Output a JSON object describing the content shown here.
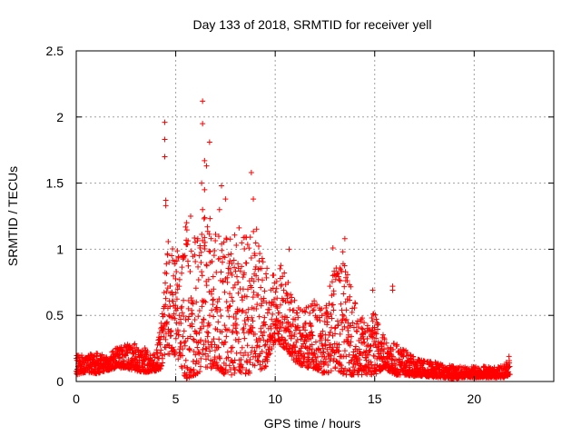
{
  "chart_data": {
    "type": "scatter",
    "title": "Day 133 of 2018, SRMTID for receiver yell",
    "xlabel": "GPS time / hours",
    "ylabel": "SRMTID / TECUs",
    "xlim": [
      0,
      24
    ],
    "ylim": [
      0,
      2.5
    ],
    "grid": true,
    "marker": "+",
    "x_ticks": [
      {
        "value": 0,
        "label": "0"
      },
      {
        "value": 5,
        "label": "5"
      },
      {
        "value": 10,
        "label": "10"
      },
      {
        "value": 15,
        "label": "15"
      },
      {
        "value": 20,
        "label": "20"
      }
    ],
    "y_ticks": [
      {
        "value": 0,
        "label": "0"
      },
      {
        "value": 0.5,
        "label": "0.5"
      },
      {
        "value": 1,
        "label": "1"
      },
      {
        "value": 1.5,
        "label": "1.5"
      },
      {
        "value": 2,
        "label": "2"
      },
      {
        "value": 2.5,
        "label": "2.5"
      }
    ],
    "series": [
      {
        "name": "SRMTID",
        "color": "#ff0000",
        "envelope": {
          "time_hours": [
            0,
            0.5,
            1,
            1.5,
            2,
            2.5,
            3,
            3.5,
            4,
            4.3,
            4.5,
            5,
            5.5,
            6,
            6.5,
            7,
            7.5,
            8,
            8.5,
            9,
            9.5,
            10,
            10.5,
            11,
            11.5,
            12,
            12.5,
            13,
            13.5,
            14,
            14.5,
            15,
            15.5,
            16,
            16.5,
            17,
            17.5,
            18,
            18.5,
            19,
            19.5,
            20,
            20.5,
            21,
            21.5,
            21.8
          ],
          "low": [
            0.05,
            0.07,
            0.06,
            0.08,
            0.1,
            0.1,
            0.08,
            0.07,
            0.08,
            0.1,
            0.2,
            0.2,
            0.02,
            0.05,
            0.1,
            0.1,
            0.05,
            0.05,
            0.05,
            0.08,
            0.1,
            0.3,
            0.25,
            0.15,
            0.1,
            0.1,
            0.05,
            0.1,
            0.05,
            0.05,
            0.05,
            0.05,
            0.1,
            0.05,
            0.05,
            0.04,
            0.04,
            0.03,
            0.03,
            0.02,
            0.03,
            0.03,
            0.03,
            0.03,
            0.03,
            0.05
          ],
          "high": [
            0.2,
            0.2,
            0.22,
            0.2,
            0.25,
            0.28,
            0.3,
            0.25,
            0.2,
            0.5,
            1.1,
            1.0,
            1.2,
            1.1,
            1.3,
            1.15,
            1.2,
            1.2,
            1.1,
            1.2,
            0.9,
            0.8,
            0.95,
            0.6,
            0.55,
            0.65,
            0.6,
            0.9,
            0.9,
            0.6,
            0.45,
            0.55,
            0.35,
            0.3,
            0.25,
            0.18,
            0.16,
            0.15,
            0.13,
            0.12,
            0.11,
            0.12,
            0.12,
            0.11,
            0.12,
            0.2
          ]
        },
        "outliers": [
          [
            4.45,
            1.96
          ],
          [
            4.45,
            1.83
          ],
          [
            4.45,
            1.7
          ],
          [
            4.5,
            1.37
          ],
          [
            4.5,
            1.33
          ],
          [
            6.35,
            2.12
          ],
          [
            6.35,
            1.95
          ],
          [
            6.45,
            1.67
          ],
          [
            6.55,
            1.63
          ],
          [
            6.7,
            1.81
          ],
          [
            6.3,
            1.5
          ],
          [
            6.45,
            1.45
          ],
          [
            6.35,
            1.3
          ],
          [
            7.3,
            1.48
          ],
          [
            7.5,
            1.38
          ],
          [
            8.8,
            1.58
          ],
          [
            8.9,
            1.38
          ],
          [
            7.2,
            1.3
          ],
          [
            5.75,
            1.25
          ],
          [
            5.55,
            1.2
          ],
          [
            10.7,
            1.0
          ],
          [
            12.9,
            1.01
          ],
          [
            13.5,
            1.08
          ],
          [
            13.4,
            0.98
          ],
          [
            15.9,
            0.72
          ],
          [
            15.9,
            0.69
          ],
          [
            14.9,
            0.69
          ],
          [
            21.75,
            0.19
          ]
        ],
        "sample_interval_hours": 0.0083
      }
    ]
  }
}
